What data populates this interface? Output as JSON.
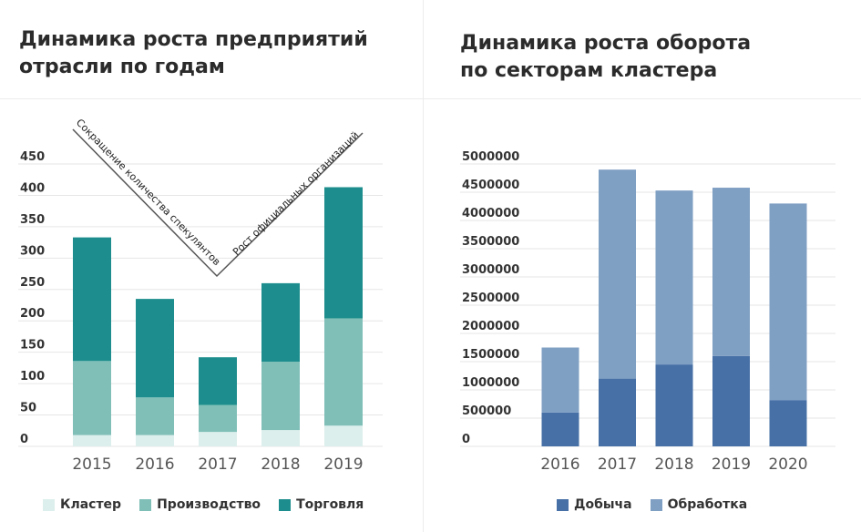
{
  "left": {
    "title_line1": "Динамика роста предприятий",
    "title_line2": "отрасли по годам",
    "annotation_left": "Сокращение количества спекулянтов",
    "annotation_right": "Рост официальных организаций"
  },
  "right": {
    "title_line1": "Динамика роста оборота",
    "title_line2": "по секторам кластера"
  },
  "chart_data": [
    {
      "type": "bar",
      "stacked": true,
      "title": "Динамика роста предприятий отрасли по годам",
      "categories": [
        "2015",
        "2016",
        "2017",
        "2018",
        "2019"
      ],
      "yticks": [
        "0",
        "50",
        "100",
        "150",
        "200",
        "250",
        "300",
        "350",
        "400",
        "450"
      ],
      "ylim": [
        0,
        450
      ],
      "grid": true,
      "legend_position": "bottom",
      "series": [
        {
          "name": "Кластер",
          "color": "#dcefec",
          "values": [
            18,
            18,
            23,
            26,
            33
          ]
        },
        {
          "name": "Производство",
          "color": "#80bfb8",
          "values": [
            118,
            60,
            43,
            109,
            171
          ]
        },
        {
          "name": "Торговля",
          "color": "#1d8e8d",
          "values": [
            197,
            157,
            76,
            125,
            209
          ]
        }
      ]
    },
    {
      "type": "bar",
      "stacked": true,
      "title": "Динамика роста оборота по секторам кластера",
      "categories": [
        "2016",
        "2017",
        "2018",
        "2019",
        "2020"
      ],
      "yticks": [
        "0",
        "500000",
        "1000000",
        "1500000",
        "2000000",
        "2500000",
        "3000000",
        "3500000",
        "4000000",
        "4500000",
        "5000000"
      ],
      "ylim": [
        0,
        5000000
      ],
      "grid": true,
      "legend_position": "bottom",
      "series": [
        {
          "name": "Добыча",
          "color": "#4670a6",
          "values": [
            600000,
            1200000,
            1450000,
            1600000,
            820000
          ]
        },
        {
          "name": "Обработка",
          "color": "#7f9fc3",
          "values": [
            1150000,
            3700000,
            3080000,
            2980000,
            3480000
          ]
        }
      ]
    }
  ]
}
